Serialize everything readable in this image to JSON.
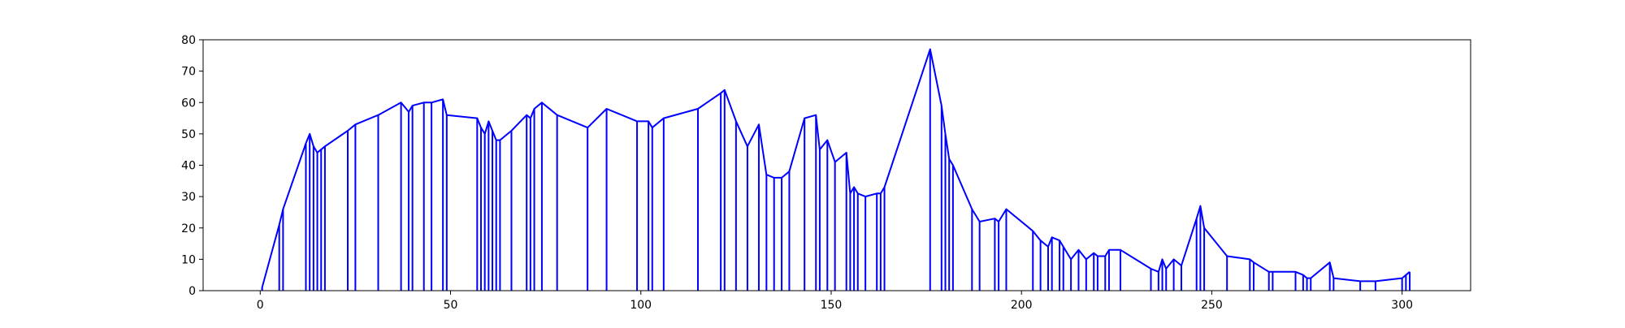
{
  "chart_data": {
    "type": "line",
    "title": "",
    "xlabel": "",
    "ylabel": "",
    "xlim": [
      -15,
      318
    ],
    "ylim": [
      0,
      80
    ],
    "grid": false,
    "legend": "none",
    "x_ticks": [
      0,
      50,
      100,
      150,
      200,
      250,
      300
    ],
    "x_tick_labels": [
      "0",
      "50",
      "100",
      "150",
      "200",
      "250",
      "300"
    ],
    "y_ticks": [
      0,
      10,
      20,
      30,
      40,
      50,
      60,
      70,
      80
    ],
    "y_tick_labels": [
      "0",
      "10",
      "20",
      "30",
      "40",
      "50",
      "60",
      "70",
      "80"
    ],
    "series": [
      {
        "color": "#0000ff",
        "points": [
          [
            0.5,
            0
          ],
          [
            0.5,
            1
          ],
          [
            5,
            21
          ],
          [
            6,
            26
          ],
          [
            12,
            47
          ],
          [
            13,
            50
          ],
          [
            14,
            46
          ],
          [
            15,
            44
          ],
          [
            16,
            45
          ],
          [
            17,
            46
          ],
          [
            23,
            51
          ],
          [
            25,
            53
          ],
          [
            31,
            56
          ],
          [
            37,
            60
          ],
          [
            39,
            57
          ],
          [
            40,
            59
          ],
          [
            43,
            60
          ],
          [
            45,
            60
          ],
          [
            48,
            61
          ],
          [
            49,
            56
          ],
          [
            57,
            55
          ],
          [
            58,
            52
          ],
          [
            59,
            50
          ],
          [
            60,
            54
          ],
          [
            61,
            51
          ],
          [
            62,
            48
          ],
          [
            63,
            48
          ],
          [
            66,
            51
          ],
          [
            70,
            56
          ],
          [
            71,
            55
          ],
          [
            72,
            58
          ],
          [
            74,
            60
          ],
          [
            78,
            56
          ],
          [
            86,
            52
          ],
          [
            91,
            58
          ],
          [
            99,
            54
          ],
          [
            102,
            54
          ],
          [
            103,
            52
          ],
          [
            106,
            55
          ],
          [
            115,
            58
          ],
          [
            121,
            63
          ],
          [
            122,
            64
          ],
          [
            125,
            54
          ],
          [
            128,
            46
          ],
          [
            131,
            53
          ],
          [
            133,
            37
          ],
          [
            135,
            36
          ],
          [
            137,
            36
          ],
          [
            139,
            38
          ],
          [
            143,
            55
          ],
          [
            146,
            56
          ],
          [
            147,
            45
          ],
          [
            149,
            48
          ],
          [
            151,
            41
          ],
          [
            154,
            44
          ],
          [
            155,
            31
          ],
          [
            156,
            33
          ],
          [
            157,
            31
          ],
          [
            159,
            30
          ],
          [
            162,
            31
          ],
          [
            163,
            31
          ],
          [
            164,
            33
          ],
          [
            176,
            77
          ],
          [
            179,
            59
          ],
          [
            180,
            50
          ],
          [
            181,
            42
          ],
          [
            182,
            40
          ],
          [
            187,
            26
          ],
          [
            189,
            22
          ],
          [
            193,
            23
          ],
          [
            194,
            22
          ],
          [
            196,
            26
          ],
          [
            203,
            19
          ],
          [
            205,
            16
          ],
          [
            207,
            14
          ],
          [
            208,
            17
          ],
          [
            210,
            16
          ],
          [
            211,
            14
          ],
          [
            213,
            10
          ],
          [
            215,
            13
          ],
          [
            217,
            10
          ],
          [
            219,
            12
          ],
          [
            220,
            11
          ],
          [
            222,
            11
          ],
          [
            223,
            13
          ],
          [
            226,
            13
          ],
          [
            234,
            7
          ],
          [
            236,
            6
          ],
          [
            237,
            10
          ],
          [
            238,
            7
          ],
          [
            240,
            10
          ],
          [
            242,
            8
          ],
          [
            246,
            23
          ],
          [
            247,
            27
          ],
          [
            248,
            20
          ],
          [
            254,
            11
          ],
          [
            260,
            10
          ],
          [
            261,
            9
          ],
          [
            265,
            6
          ],
          [
            266,
            6
          ],
          [
            272,
            6
          ],
          [
            274,
            5
          ],
          [
            275,
            4
          ],
          [
            276,
            4
          ],
          [
            281,
            9
          ],
          [
            282,
            4
          ],
          [
            289,
            3
          ],
          [
            293,
            3
          ],
          [
            300,
            4
          ],
          [
            301,
            5
          ],
          [
            302,
            6
          ]
        ]
      }
    ]
  }
}
